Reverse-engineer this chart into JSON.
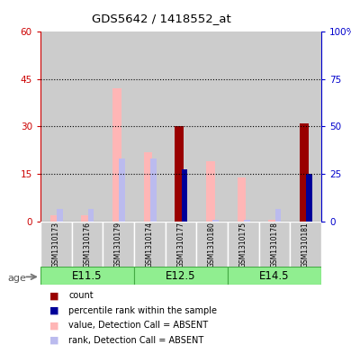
{
  "title": "GDS5642 / 1418552_at",
  "samples": [
    "GSM1310173",
    "GSM1310176",
    "GSM1310179",
    "GSM1310174",
    "GSM1310177",
    "GSM1310180",
    "GSM1310175",
    "GSM1310178",
    "GSM1310181"
  ],
  "groups": [
    {
      "label": "E11.5",
      "start": 0,
      "end": 3
    },
    {
      "label": "E12.5",
      "start": 3,
      "end": 6
    },
    {
      "label": "E14.5",
      "start": 6,
      "end": 9
    }
  ],
  "age_label": "age",
  "value_absent": [
    2.0,
    1.8,
    42.0,
    22.0,
    0.5,
    19.0,
    14.0,
    0.5,
    0.5
  ],
  "rank_absent": [
    4.0,
    4.0,
    20.0,
    20.0,
    0.5,
    0.5,
    0.5,
    4.0,
    0.5
  ],
  "count_values": [
    0,
    0,
    0,
    0,
    30.0,
    0,
    0,
    0,
    31.0
  ],
  "rank_present": [
    0,
    0,
    0,
    0,
    16.5,
    0,
    0,
    0,
    15.0
  ],
  "ylim_left": [
    0,
    60
  ],
  "ylim_right": [
    0,
    100
  ],
  "yticks_left": [
    0,
    15,
    30,
    45,
    60
  ],
  "yticks_right": [
    0,
    25,
    50,
    75,
    100
  ],
  "yticklabels_right": [
    "0",
    "25",
    "50",
    "75",
    "100%"
  ],
  "color_count": "#990000",
  "color_rank_present": "#000099",
  "color_value_absent": "#FFB6B6",
  "color_rank_absent": "#BBBBEE",
  "color_group_bg": "#90EE90",
  "color_group_border": "#44AA44",
  "color_sample_bg": "#CCCCCC",
  "color_left_axis": "#CC0000",
  "color_right_axis": "#0000CC",
  "legend_items": [
    {
      "label": "count",
      "color": "#990000"
    },
    {
      "label": "percentile rank within the sample",
      "color": "#000099"
    },
    {
      "label": "value, Detection Call = ABSENT",
      "color": "#FFB6B6"
    },
    {
      "label": "rank, Detection Call = ABSENT",
      "color": "#BBBBEE"
    }
  ]
}
